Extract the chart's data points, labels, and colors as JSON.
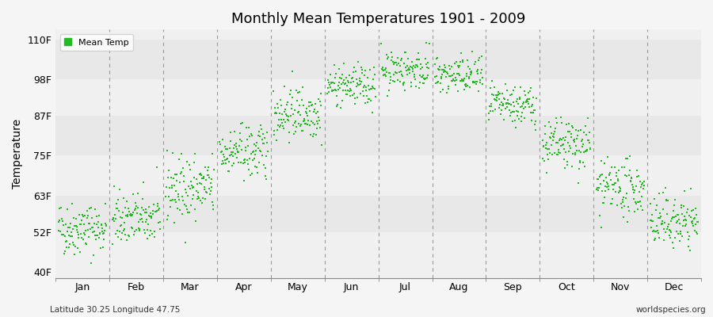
{
  "title": "Monthly Mean Temperatures 1901 - 2009",
  "ylabel": "Temperature",
  "dot_color": "#22bb22",
  "background_color": "#f5f5f5",
  "plot_bg_color": "#f0f0f0",
  "ytick_labels": [
    "40F",
    "52F",
    "63F",
    "75F",
    "87F",
    "98F",
    "110F"
  ],
  "ytick_values": [
    40,
    52,
    63,
    75,
    87,
    98,
    110
  ],
  "months": [
    "Jan",
    "Feb",
    "Mar",
    "Apr",
    "May",
    "Jun",
    "Jul",
    "Aug",
    "Sep",
    "Oct",
    "Nov",
    "Dec"
  ],
  "ylim": [
    38,
    113
  ],
  "legend_label": "Mean Temp",
  "subtitle_left": "Latitude 30.25 Longitude 47.75",
  "subtitle_right": "worldspecies.org",
  "monthly_mean_F": [
    53,
    56,
    65,
    76,
    88,
    96,
    101,
    99,
    90,
    78,
    65,
    55
  ],
  "monthly_std_F": [
    4,
    4,
    5,
    4,
    4,
    3,
    3,
    3,
    3,
    4,
    4,
    4
  ],
  "n_years": 109
}
